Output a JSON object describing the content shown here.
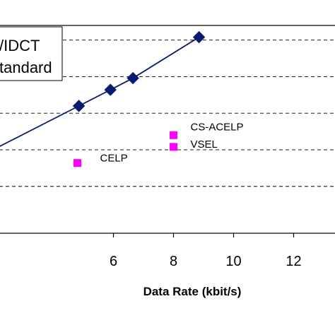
{
  "chart_data": {
    "type": "scatter",
    "xlabel": "Data Rate (kbit/s)",
    "ylabel": "",
    "xlim": [
      2.2,
      13.4
    ],
    "ylim": [
      2.63,
      4.05
    ],
    "x_ticks": [
      6,
      8,
      10,
      12
    ],
    "y_gridlines": [
      2.95,
      3.2,
      3.45,
      3.7,
      3.95
    ],
    "grid": "horizontal dashed",
    "legend": {
      "placement": "top-left",
      "entries": [
        "MDCT",
        "Standard"
      ],
      "visible_text": [
        "/IDCT",
        "tandard"
      ]
    },
    "series": [
      {
        "name": "MDCT",
        "style": "line-with-diamond-markers",
        "color": "#0a1a6e",
        "x": [
          4.85,
          5.9,
          6.65,
          8.85
        ],
        "y": [
          3.5,
          3.61,
          3.69,
          3.97
        ]
      },
      {
        "name": "Standard",
        "style": "square-markers",
        "color": "#ff00ff",
        "x": [
          4.8,
          8.0,
          8.0
        ],
        "y": [
          3.11,
          3.3,
          3.22
        ]
      }
    ],
    "annotations": [
      {
        "text": "CELP",
        "x": 4.8,
        "y": 3.11
      },
      {
        "text": "CS-ACELP",
        "x": 8.0,
        "y": 3.3
      },
      {
        "text": "VSEL",
        "x": 8.0,
        "y": 3.22
      }
    ]
  }
}
